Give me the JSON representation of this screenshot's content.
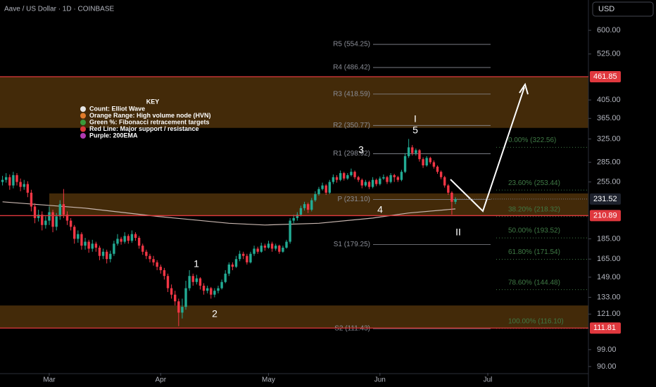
{
  "chart_data": {
    "type": "candlestick",
    "title": "Aave / US Dollar · 1D · COINBASE",
    "currency": "USD",
    "up_color": "#22ab94",
    "down_color": "#f23645",
    "log_scale": true,
    "xlim": [
      -13.7,
      150
    ],
    "xticks": [
      {
        "value": 0,
        "label": "Mar"
      },
      {
        "value": 31,
        "label": "Apr"
      },
      {
        "value": 61,
        "label": "May"
      },
      {
        "value": 92,
        "label": "Jun"
      },
      {
        "value": 122,
        "label": "Jul"
      }
    ],
    "ylim": [
      86.8,
      712
    ],
    "yticks": [
      {
        "value": 600,
        "label": "600.00"
      },
      {
        "value": 525,
        "label": "525.00"
      },
      {
        "value": 405,
        "label": "405.00"
      },
      {
        "value": 365,
        "label": "365.00"
      },
      {
        "value": 325,
        "label": "325.00"
      },
      {
        "value": 285,
        "label": "285.00"
      },
      {
        "value": 255,
        "label": "255.00"
      },
      {
        "value": 185,
        "label": "185.00"
      },
      {
        "value": 165,
        "label": "165.00"
      },
      {
        "value": 149,
        "label": "149.00"
      },
      {
        "value": 133,
        "label": "133.00"
      },
      {
        "value": 121,
        "label": "121.00"
      },
      {
        "value": 99,
        "label": "99.00"
      },
      {
        "value": 90,
        "label": "90.00"
      }
    ],
    "x": [
      -13,
      -12,
      -11,
      -10,
      -9,
      -8,
      -7,
      -6,
      -5,
      -4,
      -3,
      -2,
      -1,
      0,
      1,
      2,
      3,
      4,
      5,
      6,
      7,
      8,
      9,
      10,
      11,
      12,
      13,
      14,
      15,
      16,
      17,
      18,
      19,
      20,
      21,
      22,
      23,
      24,
      25,
      26,
      27,
      28,
      29,
      30,
      31,
      32,
      33,
      34,
      35,
      36,
      37,
      38,
      39,
      40,
      41,
      42,
      43,
      44,
      45,
      46,
      47,
      48,
      49,
      50,
      51,
      52,
      53,
      54,
      55,
      56,
      57,
      58,
      59,
      60,
      61,
      62,
      63,
      64,
      65,
      66,
      67,
      68,
      69,
      70,
      71,
      72,
      73,
      74,
      75,
      76,
      77,
      78,
      79,
      80,
      81,
      82,
      83,
      84,
      85,
      86,
      87,
      88,
      89,
      90,
      91,
      92,
      93,
      94,
      95,
      96,
      97,
      98,
      99,
      100,
      101,
      102,
      103,
      104,
      105,
      106,
      107,
      108,
      109,
      110,
      111,
      112,
      113
    ],
    "candles": [
      [
        255,
        264,
        250,
        258
      ],
      [
        258,
        268,
        254,
        262
      ],
      [
        262,
        266,
        244,
        250
      ],
      [
        250,
        270,
        246,
        265
      ],
      [
        265,
        268,
        250,
        255
      ],
      [
        255,
        260,
        242,
        248
      ],
      [
        248,
        258,
        244,
        252
      ],
      [
        252,
        256,
        234,
        240
      ],
      [
        240,
        244,
        216,
        222
      ],
      [
        222,
        226,
        202,
        208
      ],
      [
        208,
        218,
        204,
        212
      ],
      [
        212,
        216,
        194,
        200
      ],
      [
        200,
        210,
        196,
        205
      ],
      [
        205,
        222,
        200,
        215
      ],
      [
        215,
        218,
        192,
        198
      ],
      [
        198,
        214,
        194,
        210
      ],
      [
        210,
        230,
        206,
        225
      ],
      [
        225,
        245,
        208,
        212
      ],
      [
        212,
        216,
        200,
        205
      ],
      [
        205,
        208,
        194,
        198
      ],
      [
        198,
        200,
        180,
        185
      ],
      [
        185,
        194,
        181,
        190
      ],
      [
        190,
        192,
        174,
        178
      ],
      [
        178,
        186,
        174,
        182
      ],
      [
        182,
        184,
        171,
        175
      ],
      [
        175,
        184,
        172,
        180
      ],
      [
        180,
        182,
        172,
        176
      ],
      [
        176,
        178,
        164,
        168
      ],
      [
        168,
        175,
        165,
        172
      ],
      [
        172,
        174,
        161,
        165
      ],
      [
        165,
        173,
        162,
        170
      ],
      [
        170,
        183,
        168,
        180
      ],
      [
        180,
        190,
        178,
        185
      ],
      [
        185,
        187,
        179,
        182
      ],
      [
        182,
        192,
        180,
        188
      ],
      [
        188,
        190,
        180,
        183
      ],
      [
        183,
        194,
        181,
        190
      ],
      [
        190,
        192,
        183,
        186
      ],
      [
        186,
        188,
        175,
        178
      ],
      [
        178,
        180,
        169,
        172
      ],
      [
        172,
        174,
        165,
        168
      ],
      [
        168,
        170,
        162,
        165
      ],
      [
        165,
        168,
        159,
        162
      ],
      [
        162,
        164,
        155,
        158
      ],
      [
        158,
        160,
        152,
        155
      ],
      [
        155,
        157,
        147,
        150
      ],
      [
        150,
        152,
        137,
        140
      ],
      [
        140,
        143,
        132,
        135
      ],
      [
        135,
        138,
        127,
        130
      ],
      [
        130,
        132,
        113,
        122
      ],
      [
        122,
        132,
        118,
        126
      ],
      [
        126,
        146,
        124,
        140
      ],
      [
        140,
        155,
        138,
        150
      ],
      [
        150,
        152,
        142,
        145
      ],
      [
        145,
        151,
        143,
        148
      ],
      [
        148,
        149,
        139,
        142
      ],
      [
        142,
        144,
        135,
        138
      ],
      [
        138,
        142,
        136,
        140
      ],
      [
        140,
        141,
        132,
        135
      ],
      [
        135,
        140,
        133,
        138
      ],
      [
        138,
        142,
        136,
        140
      ],
      [
        140,
        147,
        139,
        145
      ],
      [
        145,
        155,
        144,
        152
      ],
      [
        152,
        162,
        150,
        160
      ],
      [
        160,
        162,
        155,
        158
      ],
      [
        158,
        168,
        157,
        165
      ],
      [
        165,
        173,
        163,
        170
      ],
      [
        170,
        172,
        165,
        168
      ],
      [
        168,
        170,
        160,
        162
      ],
      [
        162,
        172,
        161,
        170
      ],
      [
        170,
        178,
        168,
        175
      ],
      [
        175,
        177,
        170,
        172
      ],
      [
        172,
        181,
        171,
        178
      ],
      [
        178,
        180,
        173,
        176
      ],
      [
        176,
        183,
        175,
        180
      ],
      [
        180,
        182,
        172,
        175
      ],
      [
        175,
        180,
        173,
        178
      ],
      [
        178,
        179,
        170,
        172
      ],
      [
        172,
        178,
        171,
        176
      ],
      [
        176,
        184,
        175,
        182
      ],
      [
        182,
        208,
        180,
        205
      ],
      [
        205,
        212,
        202,
        208
      ],
      [
        208,
        215,
        205,
        212
      ],
      [
        212,
        223,
        210,
        220
      ],
      [
        220,
        228,
        217,
        225
      ],
      [
        225,
        227,
        214,
        218
      ],
      [
        218,
        233,
        216,
        230
      ],
      [
        230,
        242,
        228,
        238
      ],
      [
        238,
        248,
        236,
        245
      ],
      [
        245,
        254,
        243,
        250
      ],
      [
        250,
        252,
        237,
        240
      ],
      [
        240,
        258,
        238,
        255
      ],
      [
        255,
        266,
        252,
        262
      ],
      [
        262,
        265,
        254,
        258
      ],
      [
        258,
        272,
        256,
        268
      ],
      [
        268,
        270,
        257,
        260
      ],
      [
        260,
        268,
        258,
        265
      ],
      [
        265,
        275,
        263,
        270
      ],
      [
        270,
        272,
        259,
        262
      ],
      [
        262,
        264,
        255,
        258
      ],
      [
        258,
        260,
        246,
        250
      ],
      [
        250,
        258,
        248,
        255
      ],
      [
        255,
        257,
        245,
        248
      ],
      [
        248,
        262,
        246,
        258
      ],
      [
        258,
        260,
        249,
        252
      ],
      [
        252,
        263,
        250,
        260
      ],
      [
        260,
        266,
        258,
        262
      ],
      [
        262,
        264,
        252,
        255
      ],
      [
        255,
        268,
        253,
        265
      ],
      [
        265,
        267,
        255,
        262
      ],
      [
        262,
        264,
        255,
        258
      ],
      [
        258,
        273,
        256,
        270
      ],
      [
        270,
        300,
        268,
        295
      ],
      [
        295,
        325,
        292,
        310
      ],
      [
        310,
        314,
        296,
        300
      ],
      [
        300,
        308,
        296,
        305
      ],
      [
        305,
        307,
        286,
        290
      ],
      [
        290,
        293,
        276,
        280
      ],
      [
        280,
        295,
        278,
        292
      ],
      [
        292,
        294,
        282,
        285
      ],
      [
        285,
        288,
        275,
        278
      ],
      [
        278,
        280,
        267,
        270
      ],
      [
        270,
        272,
        259,
        262
      ],
      [
        262,
        264,
        247,
        250
      ],
      [
        250,
        252,
        237,
        240
      ],
      [
        240,
        242,
        212,
        228
      ],
      [
        228,
        234,
        225,
        231.52
      ]
    ],
    "ema": {
      "color": "#c9b7b0",
      "x": [
        -13,
        10,
        30,
        50,
        60,
        75,
        90,
        100,
        113
      ],
      "values": [
        228,
        220,
        210,
        202,
        200,
        202,
        208,
        214,
        219
      ]
    },
    "zones": [
      {
        "from": 346,
        "to": 461.85
      },
      {
        "from": 210.89,
        "to": 239
      },
      {
        "from": 111.81,
        "to": 127
      }
    ],
    "zone_color": "#4a2f0a",
    "level_color": "#e0383e",
    "levels": [
      461.85,
      210.89,
      111.81
    ],
    "pivots": [
      {
        "label": "R5 (554.25)",
        "value": 554.25
      },
      {
        "label": "R4 (486.42)",
        "value": 486.42
      },
      {
        "label": "R3 (418.59)",
        "value": 418.59
      },
      {
        "label": "R2 (350.77)",
        "value": 350.77
      },
      {
        "label": "R1 (298.92)",
        "value": 298.92
      },
      {
        "label": "P (231.10)",
        "value": 231.1
      },
      {
        "label": "S1 (179.25)",
        "value": 179.25
      },
      {
        "label": "S2 (111.43)",
        "value": 111.43
      }
    ],
    "fib_color": "#3f7a45",
    "fibs": [
      {
        "label": "0.00% (322.56)",
        "value": 322.56
      },
      {
        "label": "23.60% (253.44)",
        "value": 253.44
      },
      {
        "label": "38.20% (218.32)",
        "value": 218.32
      },
      {
        "label": "50.00% (193.52)",
        "value": 193.52
      },
      {
        "label": "61.80% (171.54)",
        "value": 171.54
      },
      {
        "label": "78.60% (144.48)",
        "value": 144.48
      },
      {
        "label": "100.00% (116.10)",
        "value": 116.1
      }
    ],
    "waves": [
      "I",
      "5",
      "3",
      "4",
      "1",
      "2",
      "II"
    ],
    "key": {
      "title": "KEY",
      "items": [
        {
          "label": "Count: Elliot Wave",
          "color": "#e6e6e6"
        },
        {
          "label": "Orange Range: High volume node (HVN)",
          "color": "#e07b2a"
        },
        {
          "label": "Green %: Fibonacci retracement targets",
          "color": "#3a9a3a"
        },
        {
          "label": "Red Line: Major support / resistance",
          "color": "#d9383a"
        },
        {
          "label": "Purple: 200EMA",
          "color": "#b03ab0"
        }
      ]
    }
  }
}
